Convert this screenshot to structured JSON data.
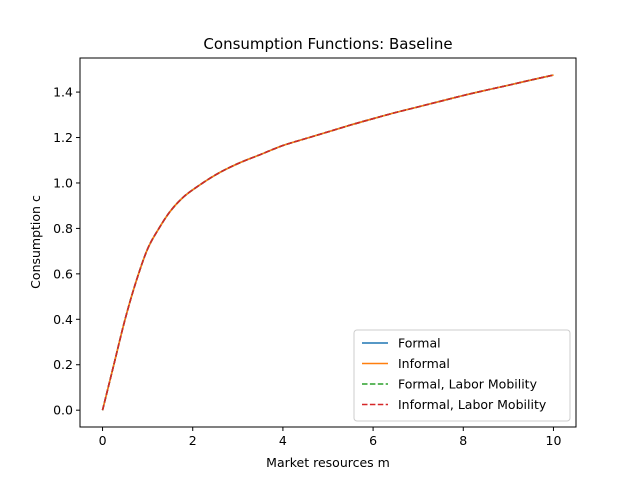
{
  "chart_data": {
    "type": "line",
    "title": "Consumption Functions: Baseline",
    "xlabel": "Market resources m",
    "ylabel": "Consumption c",
    "xlim": [
      -0.5,
      10.5
    ],
    "ylim": [
      -0.074,
      1.55
    ],
    "xticks": [
      0,
      2,
      4,
      6,
      8,
      10
    ],
    "xtick_labels": [
      "0",
      "2",
      "4",
      "6",
      "8",
      "10"
    ],
    "yticks": [
      0.0,
      0.2,
      0.4,
      0.6,
      0.8,
      1.0,
      1.2,
      1.4
    ],
    "ytick_labels": [
      "0.0",
      "0.2",
      "0.4",
      "0.6",
      "0.8",
      "1.0",
      "1.2",
      "1.4"
    ],
    "grid": false,
    "legend_position": "lower-right",
    "x": [
      0,
      0.25,
      0.5,
      0.75,
      1.0,
      1.25,
      1.5,
      1.75,
      2.0,
      2.5,
      3.0,
      3.5,
      4.0,
      4.5,
      5.0,
      5.5,
      6.0,
      6.5,
      7.0,
      7.5,
      8.0,
      8.5,
      9.0,
      9.5,
      10.0
    ],
    "series": [
      {
        "name": "Formal",
        "color": "#1f77b4",
        "style": "solid",
        "values": [
          0.0,
          0.2,
          0.4,
          0.57,
          0.71,
          0.8,
          0.875,
          0.93,
          0.97,
          1.035,
          1.085,
          1.125,
          1.165,
          1.195,
          1.225,
          1.255,
          1.283,
          1.31,
          1.335,
          1.36,
          1.385,
          1.408,
          1.43,
          1.453,
          1.475
        ]
      },
      {
        "name": "Informal",
        "color": "#ff7f0e",
        "style": "solid",
        "values": [
          0.0,
          0.2,
          0.4,
          0.57,
          0.71,
          0.8,
          0.875,
          0.93,
          0.97,
          1.035,
          1.085,
          1.125,
          1.165,
          1.195,
          1.225,
          1.255,
          1.283,
          1.31,
          1.335,
          1.36,
          1.385,
          1.408,
          1.43,
          1.453,
          1.475
        ]
      },
      {
        "name": "Formal, Labor Mobility",
        "color": "#2ca02c",
        "style": "dashed",
        "values": [
          0.0,
          0.2,
          0.4,
          0.57,
          0.71,
          0.8,
          0.875,
          0.93,
          0.97,
          1.035,
          1.085,
          1.125,
          1.165,
          1.195,
          1.225,
          1.255,
          1.283,
          1.31,
          1.335,
          1.36,
          1.385,
          1.408,
          1.43,
          1.453,
          1.475
        ]
      },
      {
        "name": "Informal, Labor Mobility",
        "color": "#d62728",
        "style": "dashed",
        "values": [
          0.0,
          0.2,
          0.4,
          0.57,
          0.71,
          0.8,
          0.875,
          0.93,
          0.97,
          1.035,
          1.085,
          1.125,
          1.165,
          1.195,
          1.225,
          1.255,
          1.283,
          1.31,
          1.335,
          1.36,
          1.385,
          1.408,
          1.43,
          1.453,
          1.475
        ]
      }
    ]
  }
}
